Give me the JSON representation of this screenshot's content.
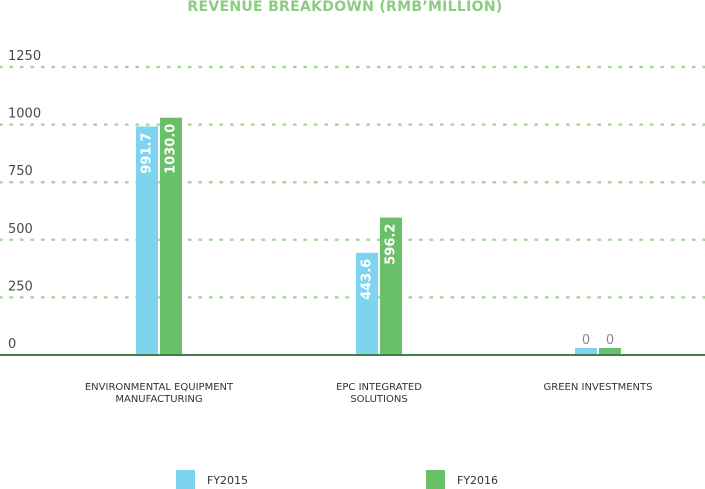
{
  "chart_data": {
    "type": "bar",
    "title": "REVENUE BREAKDOWN (RMB’MILLION)",
    "categories": [
      [
        "ENVIRONMENTAL EQUIPMENT",
        "MANUFACTURING"
      ],
      [
        "EPC INTEGRATED",
        "SOLUTIONS"
      ],
      [
        "GREEN INVESTMENTS"
      ]
    ],
    "series": [
      {
        "name": "FY2015",
        "color": "#7ed3ef",
        "values": [
          991.7,
          443.6,
          0
        ],
        "labels": [
          "991.7",
          "443.6",
          "0"
        ]
      },
      {
        "name": "FY2016",
        "color": "#6abf69",
        "values": [
          1030.0,
          596.2,
          0
        ],
        "labels": [
          "1030.0",
          "596.2",
          "0"
        ]
      }
    ],
    "yticks": [
      0,
      250,
      500,
      750,
      1000,
      1250
    ],
    "ylim": [
      0,
      1250
    ],
    "grid": true,
    "legend": "bottom",
    "colors": {
      "grid": "#a6d79a",
      "axis": "#3f7f4a",
      "title": "#8ccb82"
    }
  }
}
